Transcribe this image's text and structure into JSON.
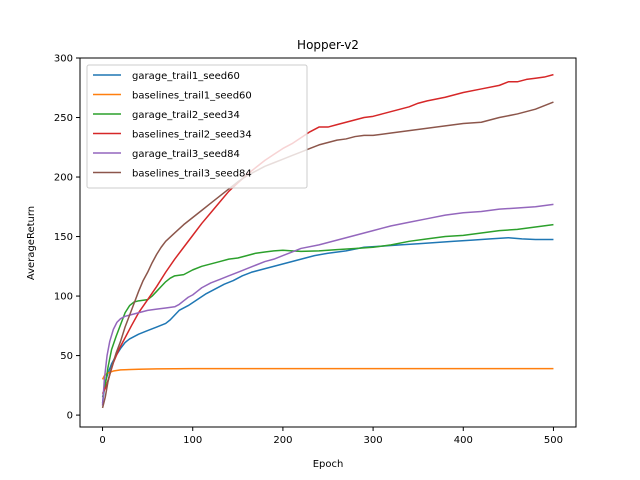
{
  "chart_data": {
    "type": "line",
    "title": "Hopper-v2",
    "xlabel": "Epoch",
    "ylabel": "AverageReturn",
    "xlim": [
      -25,
      525
    ],
    "ylim": [
      -10,
      300
    ],
    "xticks": [
      0,
      100,
      200,
      300,
      400,
      500
    ],
    "yticks": [
      0,
      50,
      100,
      150,
      200,
      250,
      300
    ],
    "grid": false,
    "legend_position": "top-left",
    "series": [
      {
        "name": "garage_trail1_seed60",
        "color": "#1f77b4",
        "points": [
          [
            0,
            10
          ],
          [
            3,
            28
          ],
          [
            6,
            35
          ],
          [
            10,
            43
          ],
          [
            15,
            50
          ],
          [
            20,
            56
          ],
          [
            25,
            61
          ],
          [
            30,
            64
          ],
          [
            35,
            66
          ],
          [
            40,
            68
          ],
          [
            50,
            71
          ],
          [
            60,
            74
          ],
          [
            70,
            77
          ],
          [
            75,
            80
          ],
          [
            80,
            84
          ],
          [
            85,
            88
          ],
          [
            95,
            92
          ],
          [
            105,
            97
          ],
          [
            115,
            102
          ],
          [
            125,
            106
          ],
          [
            135,
            110
          ],
          [
            145,
            113
          ],
          [
            155,
            117
          ],
          [
            165,
            120
          ],
          [
            175,
            122
          ],
          [
            185,
            124
          ],
          [
            195,
            126
          ],
          [
            205,
            128
          ],
          [
            215,
            130
          ],
          [
            225,
            132
          ],
          [
            235,
            134
          ],
          [
            250,
            136
          ],
          [
            270,
            138
          ],
          [
            290,
            141
          ],
          [
            310,
            142
          ],
          [
            330,
            143
          ],
          [
            350,
            144
          ],
          [
            370,
            145
          ],
          [
            390,
            146
          ],
          [
            410,
            147
          ],
          [
            430,
            148
          ],
          [
            450,
            149
          ],
          [
            465,
            148
          ],
          [
            480,
            147.5
          ],
          [
            500,
            147.5
          ]
        ]
      },
      {
        "name": "baselines_trail1_seed60",
        "color": "#ff7f0e",
        "points": [
          [
            0,
            30
          ],
          [
            2,
            33
          ],
          [
            5,
            35
          ],
          [
            8,
            36
          ],
          [
            12,
            37
          ],
          [
            20,
            38
          ],
          [
            40,
            38.5
          ],
          [
            60,
            38.8
          ],
          [
            100,
            39
          ],
          [
            200,
            39
          ],
          [
            300,
            39
          ],
          [
            400,
            39
          ],
          [
            500,
            39
          ]
        ]
      },
      {
        "name": "garage_trail2_seed34",
        "color": "#2ca02c",
        "points": [
          [
            0,
            15
          ],
          [
            3,
            25
          ],
          [
            6,
            40
          ],
          [
            10,
            55
          ],
          [
            15,
            66
          ],
          [
            20,
            76
          ],
          [
            25,
            86
          ],
          [
            30,
            92
          ],
          [
            35,
            95
          ],
          [
            40,
            96
          ],
          [
            50,
            97
          ],
          [
            55,
            100
          ],
          [
            60,
            104
          ],
          [
            65,
            108
          ],
          [
            70,
            112
          ],
          [
            75,
            115
          ],
          [
            80,
            117
          ],
          [
            90,
            118
          ],
          [
            100,
            122
          ],
          [
            110,
            125
          ],
          [
            120,
            127
          ],
          [
            130,
            129
          ],
          [
            140,
            131
          ],
          [
            150,
            132
          ],
          [
            160,
            134
          ],
          [
            170,
            136
          ],
          [
            180,
            137
          ],
          [
            190,
            138
          ],
          [
            200,
            138.5
          ],
          [
            210,
            138
          ],
          [
            220,
            137.5
          ],
          [
            240,
            138
          ],
          [
            260,
            139
          ],
          [
            280,
            140
          ],
          [
            300,
            141
          ],
          [
            320,
            143
          ],
          [
            340,
            146
          ],
          [
            360,
            148
          ],
          [
            380,
            150
          ],
          [
            400,
            151
          ],
          [
            420,
            153
          ],
          [
            440,
            155
          ],
          [
            460,
            156
          ],
          [
            480,
            158
          ],
          [
            500,
            160
          ]
        ]
      },
      {
        "name": "baselines_trail2_seed34",
        "color": "#d62728",
        "points": [
          [
            0,
            18
          ],
          [
            4,
            24
          ],
          [
            8,
            34
          ],
          [
            12,
            44
          ],
          [
            18,
            55
          ],
          [
            25,
            65
          ],
          [
            32,
            75
          ],
          [
            40,
            86
          ],
          [
            50,
            97
          ],
          [
            60,
            108
          ],
          [
            70,
            120
          ],
          [
            80,
            131
          ],
          [
            90,
            141
          ],
          [
            100,
            151
          ],
          [
            110,
            161
          ],
          [
            120,
            170
          ],
          [
            130,
            179
          ],
          [
            140,
            188
          ],
          [
            150,
            195
          ],
          [
            160,
            202
          ],
          [
            170,
            208
          ],
          [
            180,
            214
          ],
          [
            190,
            219
          ],
          [
            200,
            224
          ],
          [
            210,
            228
          ],
          [
            220,
            233
          ],
          [
            230,
            238
          ],
          [
            240,
            242
          ],
          [
            250,
            242
          ],
          [
            260,
            244
          ],
          [
            270,
            246
          ],
          [
            280,
            248
          ],
          [
            290,
            250
          ],
          [
            300,
            251
          ],
          [
            310,
            253
          ],
          [
            320,
            255
          ],
          [
            330,
            257
          ],
          [
            340,
            259
          ],
          [
            350,
            262
          ],
          [
            360,
            264
          ],
          [
            380,
            267
          ],
          [
            400,
            271
          ],
          [
            420,
            274
          ],
          [
            440,
            277
          ],
          [
            450,
            280
          ],
          [
            460,
            280
          ],
          [
            470,
            282
          ],
          [
            480,
            283
          ],
          [
            490,
            284
          ],
          [
            500,
            286
          ]
        ]
      },
      {
        "name": "garage_trail3_seed84",
        "color": "#9467bd",
        "points": [
          [
            0,
            8
          ],
          [
            2,
            30
          ],
          [
            5,
            50
          ],
          [
            8,
            62
          ],
          [
            12,
            72
          ],
          [
            16,
            78
          ],
          [
            20,
            81
          ],
          [
            25,
            83
          ],
          [
            30,
            84
          ],
          [
            40,
            86
          ],
          [
            50,
            88
          ],
          [
            60,
            89
          ],
          [
            70,
            90
          ],
          [
            80,
            91
          ],
          [
            85,
            93
          ],
          [
            90,
            96
          ],
          [
            95,
            99
          ],
          [
            100,
            101
          ],
          [
            105,
            104
          ],
          [
            110,
            107
          ],
          [
            120,
            111
          ],
          [
            130,
            114
          ],
          [
            140,
            117
          ],
          [
            150,
            120
          ],
          [
            160,
            123
          ],
          [
            170,
            126
          ],
          [
            180,
            129
          ],
          [
            190,
            131
          ],
          [
            200,
            134
          ],
          [
            210,
            137
          ],
          [
            220,
            140
          ],
          [
            240,
            143
          ],
          [
            260,
            147
          ],
          [
            280,
            151
          ],
          [
            300,
            155
          ],
          [
            320,
            159
          ],
          [
            340,
            162
          ],
          [
            360,
            165
          ],
          [
            380,
            168
          ],
          [
            400,
            170
          ],
          [
            420,
            171
          ],
          [
            440,
            173
          ],
          [
            460,
            174
          ],
          [
            480,
            175
          ],
          [
            500,
            177
          ]
        ]
      },
      {
        "name": "baselines_trail3_seed84",
        "color": "#8c564b",
        "points": [
          [
            0,
            6
          ],
          [
            3,
            15
          ],
          [
            6,
            28
          ],
          [
            10,
            40
          ],
          [
            15,
            52
          ],
          [
            20,
            62
          ],
          [
            25,
            74
          ],
          [
            30,
            84
          ],
          [
            35,
            94
          ],
          [
            40,
            104
          ],
          [
            45,
            113
          ],
          [
            50,
            120
          ],
          [
            55,
            128
          ],
          [
            60,
            135
          ],
          [
            65,
            141
          ],
          [
            70,
            146
          ],
          [
            80,
            153
          ],
          [
            90,
            160
          ],
          [
            100,
            166
          ],
          [
            110,
            172
          ],
          [
            120,
            178
          ],
          [
            130,
            184
          ],
          [
            140,
            190
          ],
          [
            150,
            196
          ],
          [
            160,
            201
          ],
          [
            170,
            205
          ],
          [
            180,
            209
          ],
          [
            190,
            212
          ],
          [
            200,
            215
          ],
          [
            210,
            218
          ],
          [
            220,
            221
          ],
          [
            230,
            224
          ],
          [
            240,
            227
          ],
          [
            250,
            229
          ],
          [
            260,
            231
          ],
          [
            270,
            232
          ],
          [
            280,
            234
          ],
          [
            290,
            235
          ],
          [
            300,
            235
          ],
          [
            320,
            237
          ],
          [
            340,
            239
          ],
          [
            360,
            241
          ],
          [
            380,
            243
          ],
          [
            400,
            245
          ],
          [
            420,
            246
          ],
          [
            440,
            250
          ],
          [
            460,
            253
          ],
          [
            480,
            257
          ],
          [
            500,
            263
          ]
        ]
      }
    ]
  }
}
